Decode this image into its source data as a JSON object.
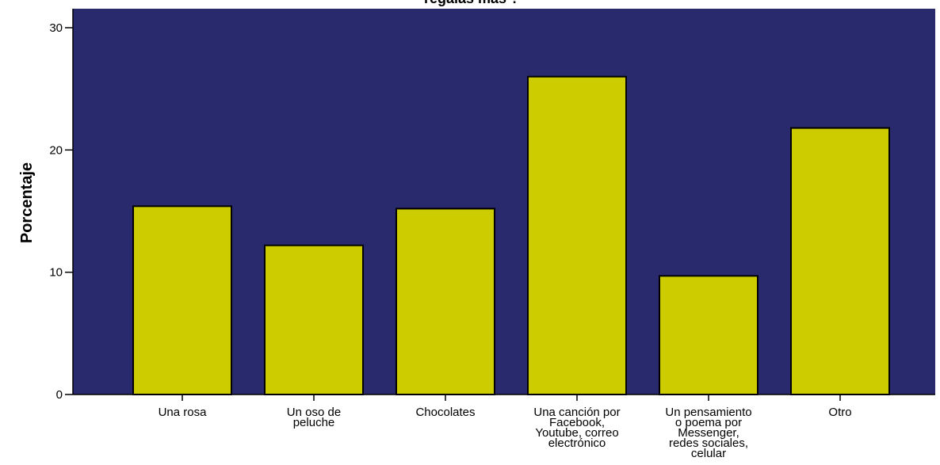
{
  "chart_data": {
    "type": "bar",
    "title": "regalas más ?",
    "xlabel": "",
    "ylabel": "Porcentaje",
    "ylim": [
      0,
      31.5
    ],
    "yticks": [
      0,
      10,
      20,
      30
    ],
    "grid": false,
    "legend": "none",
    "categories": [
      "Una rosa",
      "Un oso de peluche",
      "Chocolates",
      "Una canción por Facebook, Youtube, correo electrónico",
      "Un pensamiento o poema por Messenger, redes sociales, celular",
      "Otro"
    ],
    "category_lines": [
      [
        "Una rosa"
      ],
      [
        "Un oso de",
        "peluche"
      ],
      [
        "Chocolates"
      ],
      [
        "Una canción por",
        "Facebook,",
        "Youtube, correo",
        "electrónico"
      ],
      [
        "Un pensamiento",
        "o poema por",
        "Messenger,",
        "redes sociales,",
        "celular"
      ],
      [
        "Otro"
      ]
    ],
    "values": [
      15.4,
      12.2,
      15.2,
      26.0,
      9.7,
      21.8
    ],
    "colors": {
      "plot_background": "#29296e",
      "bar_fill": "#cccc00",
      "bar_stroke": "#000000"
    }
  }
}
